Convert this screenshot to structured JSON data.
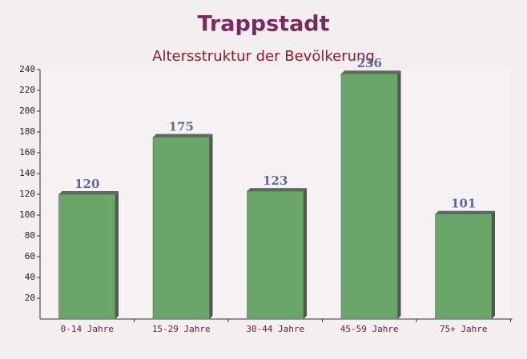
{
  "chart_data": {
    "type": "bar",
    "title": "Trappstadt",
    "subtitle": "Altersstruktur der Bevölkerung",
    "categories": [
      "0-14 Jahre",
      "15-29 Jahre",
      "30-44 Jahre",
      "45-59 Jahre",
      "75+ Jahre"
    ],
    "values": [
      120,
      175,
      123,
      236,
      101
    ],
    "color": "#6aa66a",
    "ylim": [
      0,
      240
    ],
    "yticks": [
      20,
      40,
      60,
      80,
      100,
      120,
      140,
      160,
      180,
      200,
      220,
      240
    ],
    "grid": false
  }
}
